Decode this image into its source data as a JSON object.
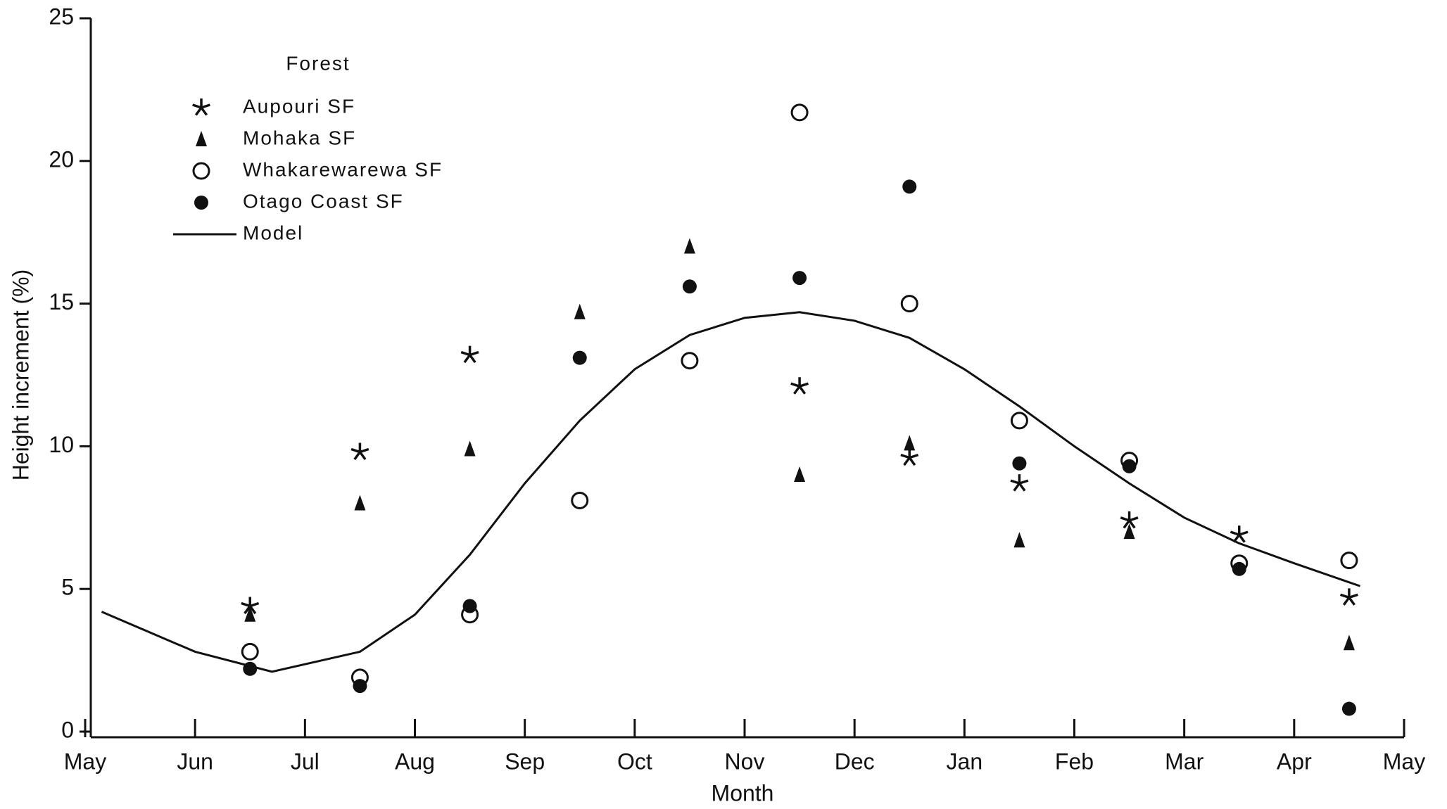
{
  "chart_data": {
    "type": "scatter",
    "x_label": "Month",
    "y_label": "Height increment (%)",
    "legend_title": "Forest",
    "legend": "upper left",
    "xlim": [
      0,
      12
    ],
    "xticks": [
      {
        "value": 0,
        "label": "May"
      },
      {
        "value": 1,
        "label": "Jun"
      },
      {
        "value": 2,
        "label": "Jul"
      },
      {
        "value": 3,
        "label": "Aug"
      },
      {
        "value": 4,
        "label": "Sep"
      },
      {
        "value": 5,
        "label": "Oct"
      },
      {
        "value": 6,
        "label": "Nov"
      },
      {
        "value": 7,
        "label": "Dec"
      },
      {
        "value": 8,
        "label": "Jan"
      },
      {
        "value": 9,
        "label": "Feb"
      },
      {
        "value": 10,
        "label": "Mar"
      },
      {
        "value": 11,
        "label": "Apr"
      },
      {
        "value": 12,
        "label": "May"
      }
    ],
    "ylim": [
      0,
      25
    ],
    "yticks": [
      0,
      5,
      10,
      15,
      20,
      25
    ],
    "series": [
      {
        "name": "Aupouri SF",
        "marker": "star",
        "color": "#111111",
        "x": [
          1.5,
          2.5,
          3.5,
          4.5,
          5.5,
          6.5,
          7.5,
          8.5,
          9.5,
          10.5,
          11.5
        ],
        "values": [
          4.4,
          9.8,
          13.2,
          null,
          null,
          12.1,
          9.6,
          8.7,
          7.4,
          6.9,
          4.7
        ]
      },
      {
        "name": "Mohaka SF",
        "marker": "triangle",
        "color": "#111111",
        "x": [
          1.5,
          2.5,
          3.5,
          4.5,
          5.5,
          6.5,
          7.5,
          8.5,
          9.5,
          10.5,
          11.5
        ],
        "values": [
          4.1,
          8.0,
          9.9,
          14.7,
          17.0,
          9.0,
          10.1,
          6.7,
          7.0,
          null,
          3.1
        ]
      },
      {
        "name": "Whakarewarewa SF",
        "marker": "open-circle",
        "color": "#111111",
        "x": [
          1.5,
          2.5,
          3.5,
          4.5,
          5.5,
          6.5,
          7.5,
          8.5,
          9.5,
          10.5,
          11.5
        ],
        "values": [
          2.8,
          1.9,
          4.1,
          8.1,
          13.0,
          21.7,
          15.0,
          10.9,
          9.5,
          5.9,
          6.0
        ]
      },
      {
        "name": "Otago Coast SF",
        "marker": "circle",
        "color": "#111111",
        "x": [
          1.5,
          2.5,
          3.5,
          4.5,
          5.5,
          6.5,
          7.5,
          8.5,
          9.5,
          10.5,
          11.5
        ],
        "values": [
          2.2,
          1.6,
          4.4,
          13.1,
          15.6,
          15.9,
          19.1,
          9.4,
          9.3,
          5.7,
          0.8
        ]
      },
      {
        "name": "Model",
        "marker": "line",
        "color": "#111111",
        "x": [
          0.15,
          1.0,
          1.7,
          2.5,
          3.0,
          3.5,
          4.0,
          4.5,
          5.0,
          5.5,
          6.0,
          6.5,
          7.0,
          7.5,
          8.0,
          8.5,
          9.0,
          9.5,
          10.0,
          10.5,
          11.0,
          11.6
        ],
        "values": [
          4.2,
          2.8,
          2.1,
          2.8,
          4.1,
          6.2,
          8.7,
          10.9,
          12.7,
          13.9,
          14.5,
          14.7,
          14.4,
          13.8,
          12.7,
          11.4,
          10.0,
          8.7,
          7.5,
          6.6,
          5.9,
          5.1
        ]
      }
    ]
  }
}
